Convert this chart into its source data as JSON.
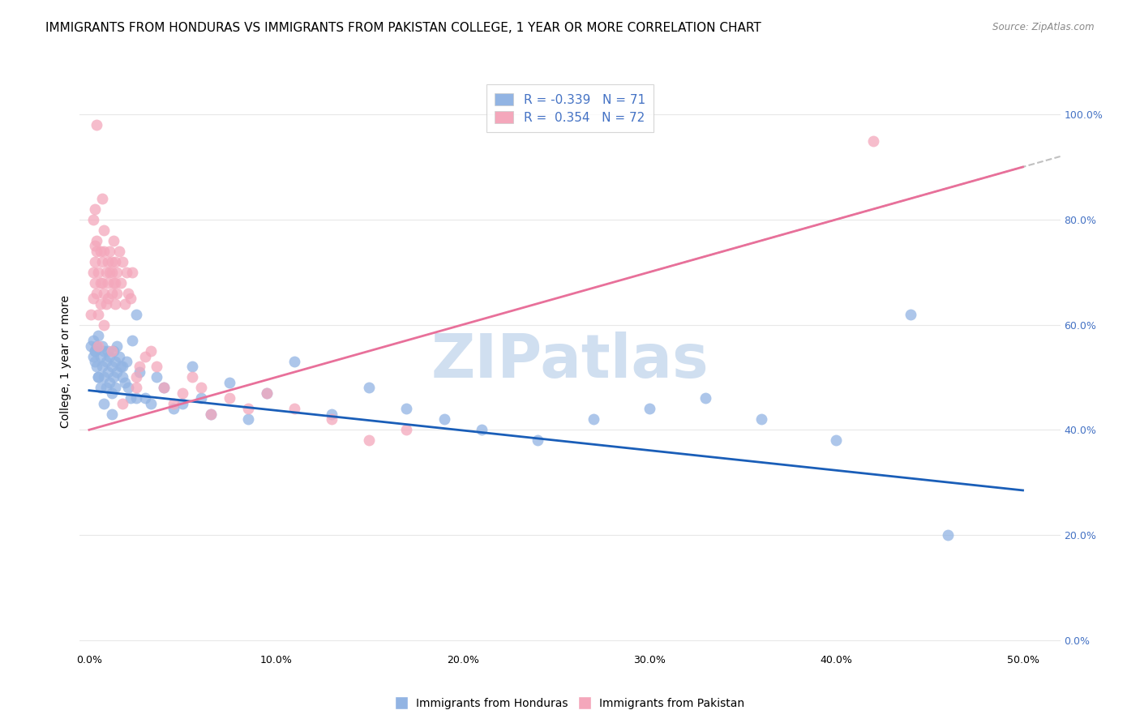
{
  "title": "IMMIGRANTS FROM HONDURAS VS IMMIGRANTS FROM PAKISTAN COLLEGE, 1 YEAR OR MORE CORRELATION CHART",
  "source": "Source: ZipAtlas.com",
  "xlabel_vals": [
    0.0,
    0.1,
    0.2,
    0.3,
    0.4,
    0.5
  ],
  "ylabel": "College, 1 year or more",
  "ytick_vals": [
    0.0,
    0.2,
    0.4,
    0.6,
    0.8,
    1.0
  ],
  "xlim": [
    -0.005,
    0.52
  ],
  "ylim": [
    -0.02,
    1.08
  ],
  "legend_labels": [
    "Immigrants from Honduras",
    "Immigrants from Pakistan"
  ],
  "legend_R": [
    "-0.339",
    "0.354"
  ],
  "legend_N": [
    "71",
    "72"
  ],
  "color_honduras": "#92b4e3",
  "color_pakistan": "#f4a7bb",
  "trendline_honduras_color": "#1a5eb8",
  "trendline_pakistan_color": "#e8709a",
  "trendline_dash_color": "#c0c0c0",
  "watermark_color": "#d0dff0",
  "background_color": "#ffffff",
  "grid_color": "#e8e8e8",
  "honduras_x": [
    0.001,
    0.002,
    0.002,
    0.003,
    0.003,
    0.004,
    0.004,
    0.005,
    0.005,
    0.006,
    0.006,
    0.007,
    0.007,
    0.008,
    0.008,
    0.009,
    0.009,
    0.01,
    0.01,
    0.011,
    0.011,
    0.012,
    0.012,
    0.013,
    0.013,
    0.014,
    0.014,
    0.015,
    0.015,
    0.016,
    0.017,
    0.018,
    0.019,
    0.02,
    0.021,
    0.022,
    0.023,
    0.025,
    0.027,
    0.03,
    0.033,
    0.036,
    0.04,
    0.045,
    0.05,
    0.055,
    0.06,
    0.065,
    0.075,
    0.085,
    0.095,
    0.11,
    0.13,
    0.15,
    0.17,
    0.19,
    0.21,
    0.24,
    0.27,
    0.3,
    0.33,
    0.36,
    0.4,
    0.44,
    0.003,
    0.005,
    0.008,
    0.012,
    0.018,
    0.025,
    0.46
  ],
  "honduras_y": [
    0.56,
    0.57,
    0.54,
    0.55,
    0.53,
    0.56,
    0.52,
    0.58,
    0.5,
    0.54,
    0.48,
    0.56,
    0.52,
    0.55,
    0.5,
    0.53,
    0.48,
    0.55,
    0.51,
    0.54,
    0.49,
    0.52,
    0.47,
    0.55,
    0.5,
    0.53,
    0.48,
    0.56,
    0.51,
    0.54,
    0.52,
    0.5,
    0.49,
    0.53,
    0.48,
    0.46,
    0.57,
    0.62,
    0.51,
    0.46,
    0.45,
    0.5,
    0.48,
    0.44,
    0.45,
    0.52,
    0.46,
    0.43,
    0.49,
    0.42,
    0.47,
    0.53,
    0.43,
    0.48,
    0.44,
    0.42,
    0.4,
    0.38,
    0.42,
    0.44,
    0.46,
    0.42,
    0.38,
    0.62,
    0.55,
    0.5,
    0.45,
    0.43,
    0.52,
    0.46,
    0.2
  ],
  "pakistan_x": [
    0.001,
    0.002,
    0.002,
    0.003,
    0.003,
    0.004,
    0.004,
    0.005,
    0.005,
    0.006,
    0.006,
    0.007,
    0.007,
    0.008,
    0.008,
    0.009,
    0.009,
    0.01,
    0.01,
    0.011,
    0.011,
    0.012,
    0.012,
    0.013,
    0.013,
    0.014,
    0.014,
    0.015,
    0.015,
    0.016,
    0.017,
    0.018,
    0.019,
    0.02,
    0.021,
    0.022,
    0.023,
    0.025,
    0.027,
    0.03,
    0.033,
    0.036,
    0.04,
    0.045,
    0.05,
    0.055,
    0.06,
    0.065,
    0.075,
    0.085,
    0.095,
    0.11,
    0.13,
    0.15,
    0.17,
    0.003,
    0.005,
    0.008,
    0.012,
    0.018,
    0.025,
    0.002,
    0.003,
    0.004,
    0.006,
    0.007,
    0.008,
    0.01,
    0.012,
    0.014,
    0.42,
    0.004
  ],
  "pakistan_y": [
    0.62,
    0.7,
    0.65,
    0.68,
    0.72,
    0.66,
    0.74,
    0.7,
    0.62,
    0.68,
    0.64,
    0.72,
    0.68,
    0.66,
    0.74,
    0.7,
    0.64,
    0.72,
    0.68,
    0.74,
    0.7,
    0.66,
    0.72,
    0.76,
    0.68,
    0.72,
    0.64,
    0.66,
    0.7,
    0.74,
    0.68,
    0.72,
    0.64,
    0.7,
    0.66,
    0.65,
    0.7,
    0.5,
    0.52,
    0.54,
    0.55,
    0.52,
    0.48,
    0.45,
    0.47,
    0.5,
    0.48,
    0.43,
    0.46,
    0.44,
    0.47,
    0.44,
    0.42,
    0.38,
    0.4,
    0.75,
    0.56,
    0.6,
    0.55,
    0.45,
    0.48,
    0.8,
    0.82,
    0.76,
    0.74,
    0.84,
    0.78,
    0.65,
    0.7,
    0.68,
    0.95,
    0.98
  ],
  "title_fontsize": 11,
  "axis_fontsize": 9,
  "legend_fontsize": 11,
  "marker_size": 100
}
